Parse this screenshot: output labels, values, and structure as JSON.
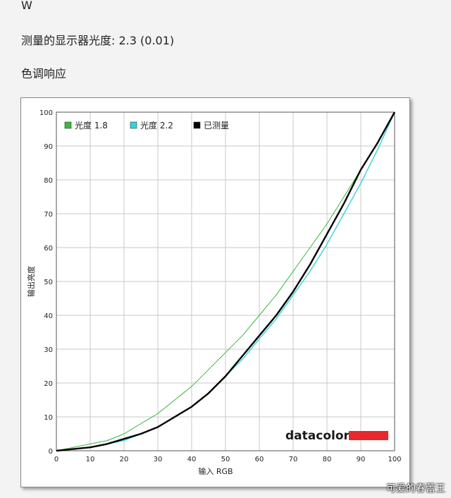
{
  "header": {
    "w_label": "W",
    "gamma_label": "测量的显示器光度:",
    "gamma_value": "2.3 (0.01)",
    "section_title": "色调响应"
  },
  "watermark": "可爱的春蕾王",
  "brand": "datacolor",
  "colors": {
    "gamma18": "#3cb83c",
    "gamma22": "#33d6d6",
    "measured": "#000000",
    "brand_bar": "#e8282d",
    "grid": "#c8c8c8"
  },
  "chart_data": {
    "type": "line",
    "xlabel": "输入 RGB",
    "ylabel": "输出亮度",
    "xlim": [
      0,
      100
    ],
    "ylim": [
      0,
      100
    ],
    "x_ticks": [
      0,
      10,
      20,
      30,
      40,
      50,
      60,
      70,
      80,
      90,
      100
    ],
    "y_ticks": [
      0,
      10,
      20,
      30,
      40,
      50,
      60,
      70,
      80,
      90,
      100
    ],
    "grid": true,
    "legend_position": "top-left",
    "series": [
      {
        "name": "光度 1.8",
        "color": "#3cb83c",
        "x": [
          0,
          5,
          10,
          15,
          20,
          25,
          30,
          35,
          40,
          45,
          50,
          55,
          60,
          65,
          70,
          75,
          80,
          85,
          90,
          95,
          100
        ],
        "y": [
          0,
          1,
          2,
          3,
          5,
          8,
          11,
          15,
          19,
          24,
          29,
          34,
          40,
          46,
          53,
          60,
          67,
          75,
          83,
          91,
          100
        ]
      },
      {
        "name": "光度 2.2",
        "color": "#33d6d6",
        "x": [
          0,
          5,
          10,
          15,
          20,
          25,
          30,
          35,
          40,
          45,
          50,
          55,
          60,
          65,
          70,
          75,
          80,
          85,
          90,
          95,
          100
        ],
        "y": [
          0,
          0.5,
          1,
          2,
          3,
          5,
          7,
          10,
          13,
          17,
          22,
          27,
          33,
          39,
          46,
          53,
          61,
          70,
          79,
          89,
          100
        ]
      },
      {
        "name": "已测量",
        "color": "#000000",
        "x": [
          0,
          5,
          10,
          15,
          20,
          25,
          30,
          35,
          40,
          45,
          50,
          55,
          60,
          65,
          70,
          75,
          80,
          85,
          90,
          95,
          100
        ],
        "y": [
          0,
          0.5,
          1,
          2,
          3.5,
          5,
          7,
          10,
          13,
          17,
          22,
          28,
          34,
          40,
          47,
          55,
          64,
          73,
          83,
          91,
          100
        ]
      }
    ]
  }
}
